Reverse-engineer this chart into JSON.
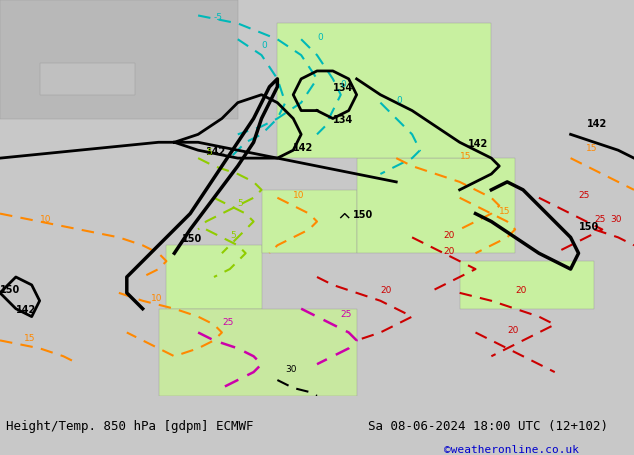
{
  "title_left": "Height/Temp. 850 hPa [gdpm] ECMWF",
  "title_right": "Sa 08-06-2024 18:00 UTC (12+102)",
  "credit": "©weatheronline.co.uk",
  "bg_color": "#d0d0d0",
  "land_color_warm": "#c8f0a0",
  "land_color_cold": "#ffffff",
  "sea_color": "#e8e8e8",
  "title_fontsize": 9,
  "credit_color": "#0000cc"
}
